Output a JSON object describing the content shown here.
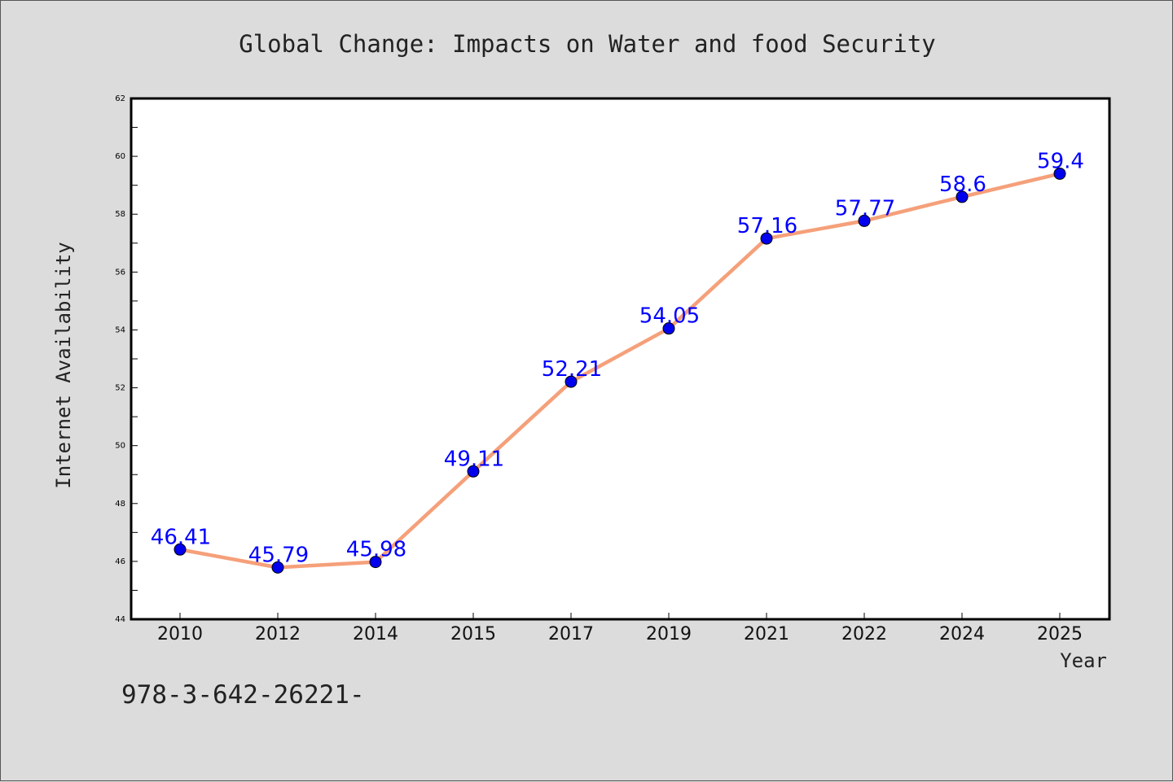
{
  "chart_data": {
    "type": "line",
    "title": "Global Change: Impacts on Water and food Security",
    "xlabel": "Year",
    "ylabel": "Internet Availability",
    "categories": [
      "2010",
      "2012",
      "2014",
      "2015",
      "2017",
      "2019",
      "2021",
      "2022",
      "2024",
      "2025"
    ],
    "series": [
      {
        "values": [
          46.41,
          45.79,
          45.98,
          49.11,
          52.21,
          54.05,
          57.16,
          57.77,
          58.6,
          59.4
        ]
      }
    ],
    "data_labels": [
      "46.41",
      "45.79",
      "45.98",
      "49.11",
      "52.21",
      "54.05",
      "57.16",
      "57.77",
      "58.6",
      "59.4"
    ],
    "ylim": [
      44,
      62
    ],
    "yticks": [
      "44",
      "46",
      "48",
      "50",
      "52",
      "54",
      "56",
      "58",
      "60",
      "62"
    ],
    "grid": false,
    "legend": "none",
    "colors": {
      "line": "#f5a07a",
      "marker": "#0000ee",
      "data_label": "#0000ff",
      "background": "#dcdcdc",
      "plot_background": "#ffffff"
    }
  },
  "footer": {
    "isbn": "978-3-642-26221-"
  }
}
